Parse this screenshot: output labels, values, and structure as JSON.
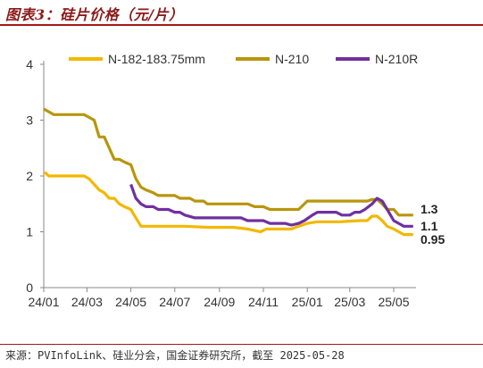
{
  "header": {
    "title": "图表3：硅片价格（元/片）"
  },
  "footer": {
    "source": "来源：PVInfoLink、硅业分会，国金证券研究所，截至 2025-05-28"
  },
  "colors": {
    "accent": "#a31a1a",
    "axis": "#888888"
  },
  "chart_data": {
    "type": "line",
    "title": "",
    "xlabel": "",
    "ylabel": "",
    "ylim": [
      0,
      4
    ],
    "yticks": [
      "0",
      "1",
      "2",
      "3",
      "4"
    ],
    "x_tick_labels": [
      "24/01",
      "24/03",
      "24/05",
      "24/07",
      "24/09",
      "24/11",
      "25/01",
      "25/03",
      "25/05"
    ],
    "grid": false,
    "legend_position": "top",
    "series": [
      {
        "name": "N-182-183.75mm",
        "color": "#f2b800",
        "end_label": "0.95",
        "points": [
          [
            "2024-01-01",
            2.05
          ],
          [
            "2024-01-04",
            2.05
          ],
          [
            "2024-01-08",
            2.0
          ],
          [
            "2024-02-05",
            2.0
          ],
          [
            "2024-02-26",
            2.0
          ],
          [
            "2024-03-04",
            1.95
          ],
          [
            "2024-03-11",
            1.85
          ],
          [
            "2024-03-18",
            1.75
          ],
          [
            "2024-03-25",
            1.7
          ],
          [
            "2024-04-01",
            1.6
          ],
          [
            "2024-04-08",
            1.6
          ],
          [
            "2024-04-15",
            1.5
          ],
          [
            "2024-04-22",
            1.45
          ],
          [
            "2024-05-01",
            1.4
          ],
          [
            "2024-05-08",
            1.25
          ],
          [
            "2024-05-15",
            1.1
          ],
          [
            "2024-06-01",
            1.1
          ],
          [
            "2024-07-15",
            1.1
          ],
          [
            "2024-08-15",
            1.08
          ],
          [
            "2024-09-20",
            1.08
          ],
          [
            "2024-10-10",
            1.05
          ],
          [
            "2024-10-28",
            1.0
          ],
          [
            "2024-11-05",
            1.05
          ],
          [
            "2024-12-10",
            1.05
          ],
          [
            "2024-12-20",
            1.1
          ],
          [
            "2025-01-01",
            1.15
          ],
          [
            "2025-01-15",
            1.18
          ],
          [
            "2025-02-15",
            1.18
          ],
          [
            "2025-03-15",
            1.2
          ],
          [
            "2025-03-25",
            1.2
          ],
          [
            "2025-04-01",
            1.28
          ],
          [
            "2025-04-08",
            1.28
          ],
          [
            "2025-04-15",
            1.2
          ],
          [
            "2025-04-22",
            1.1
          ],
          [
            "2025-05-01",
            1.05
          ],
          [
            "2025-05-08",
            1.0
          ],
          [
            "2025-05-15",
            0.95
          ],
          [
            "2025-05-28",
            0.95
          ]
        ]
      },
      {
        "name": "N-210",
        "color": "#b8960c",
        "end_label": "1.3",
        "points": [
          [
            "2024-01-01",
            3.2
          ],
          [
            "2024-01-08",
            3.15
          ],
          [
            "2024-01-15",
            3.1
          ],
          [
            "2024-02-05",
            3.1
          ],
          [
            "2024-02-26",
            3.1
          ],
          [
            "2024-03-04",
            3.05
          ],
          [
            "2024-03-11",
            3.0
          ],
          [
            "2024-03-18",
            2.7
          ],
          [
            "2024-03-25",
            2.7
          ],
          [
            "2024-04-01",
            2.5
          ],
          [
            "2024-04-08",
            2.3
          ],
          [
            "2024-04-15",
            2.3
          ],
          [
            "2024-04-22",
            2.25
          ],
          [
            "2024-05-01",
            2.2
          ],
          [
            "2024-05-08",
            1.95
          ],
          [
            "2024-05-15",
            1.8
          ],
          [
            "2024-05-22",
            1.75
          ],
          [
            "2024-06-01",
            1.7
          ],
          [
            "2024-06-08",
            1.65
          ],
          [
            "2024-07-01",
            1.65
          ],
          [
            "2024-07-08",
            1.6
          ],
          [
            "2024-07-22",
            1.6
          ],
          [
            "2024-07-29",
            1.55
          ],
          [
            "2024-08-10",
            1.55
          ],
          [
            "2024-08-15",
            1.5
          ],
          [
            "2024-10-10",
            1.5
          ],
          [
            "2024-10-20",
            1.45
          ],
          [
            "2024-11-01",
            1.45
          ],
          [
            "2024-11-10",
            1.4
          ],
          [
            "2024-12-20",
            1.4
          ],
          [
            "2025-01-01",
            1.55
          ],
          [
            "2025-03-25",
            1.55
          ],
          [
            "2025-04-01",
            1.58
          ],
          [
            "2025-04-08",
            1.58
          ],
          [
            "2025-04-15",
            1.5
          ],
          [
            "2025-04-22",
            1.4
          ],
          [
            "2025-05-01",
            1.4
          ],
          [
            "2025-05-08",
            1.3
          ],
          [
            "2025-05-28",
            1.3
          ]
        ]
      },
      {
        "name": "N-210R",
        "color": "#7030a0",
        "end_label": "1.1",
        "points": [
          [
            "2024-05-01",
            1.85
          ],
          [
            "2024-05-08",
            1.6
          ],
          [
            "2024-05-15",
            1.5
          ],
          [
            "2024-05-22",
            1.45
          ],
          [
            "2024-06-01",
            1.45
          ],
          [
            "2024-06-08",
            1.4
          ],
          [
            "2024-06-22",
            1.4
          ],
          [
            "2024-07-01",
            1.35
          ],
          [
            "2024-07-08",
            1.35
          ],
          [
            "2024-07-15",
            1.3
          ],
          [
            "2024-07-29",
            1.25
          ],
          [
            "2024-10-01",
            1.25
          ],
          [
            "2024-10-10",
            1.2
          ],
          [
            "2024-11-01",
            1.2
          ],
          [
            "2024-11-10",
            1.15
          ],
          [
            "2024-12-01",
            1.15
          ],
          [
            "2024-12-10",
            1.12
          ],
          [
            "2024-12-20",
            1.15
          ],
          [
            "2024-12-28",
            1.2
          ],
          [
            "2025-01-08",
            1.3
          ],
          [
            "2025-01-15",
            1.35
          ],
          [
            "2025-02-10",
            1.35
          ],
          [
            "2025-02-18",
            1.3
          ],
          [
            "2025-03-01",
            1.3
          ],
          [
            "2025-03-08",
            1.35
          ],
          [
            "2025-03-15",
            1.35
          ],
          [
            "2025-03-22",
            1.4
          ],
          [
            "2025-04-01",
            1.5
          ],
          [
            "2025-04-08",
            1.6
          ],
          [
            "2025-04-15",
            1.55
          ],
          [
            "2025-04-22",
            1.4
          ],
          [
            "2025-05-01",
            1.2
          ],
          [
            "2025-05-08",
            1.15
          ],
          [
            "2025-05-15",
            1.1
          ],
          [
            "2025-05-28",
            1.1
          ]
        ]
      }
    ]
  }
}
